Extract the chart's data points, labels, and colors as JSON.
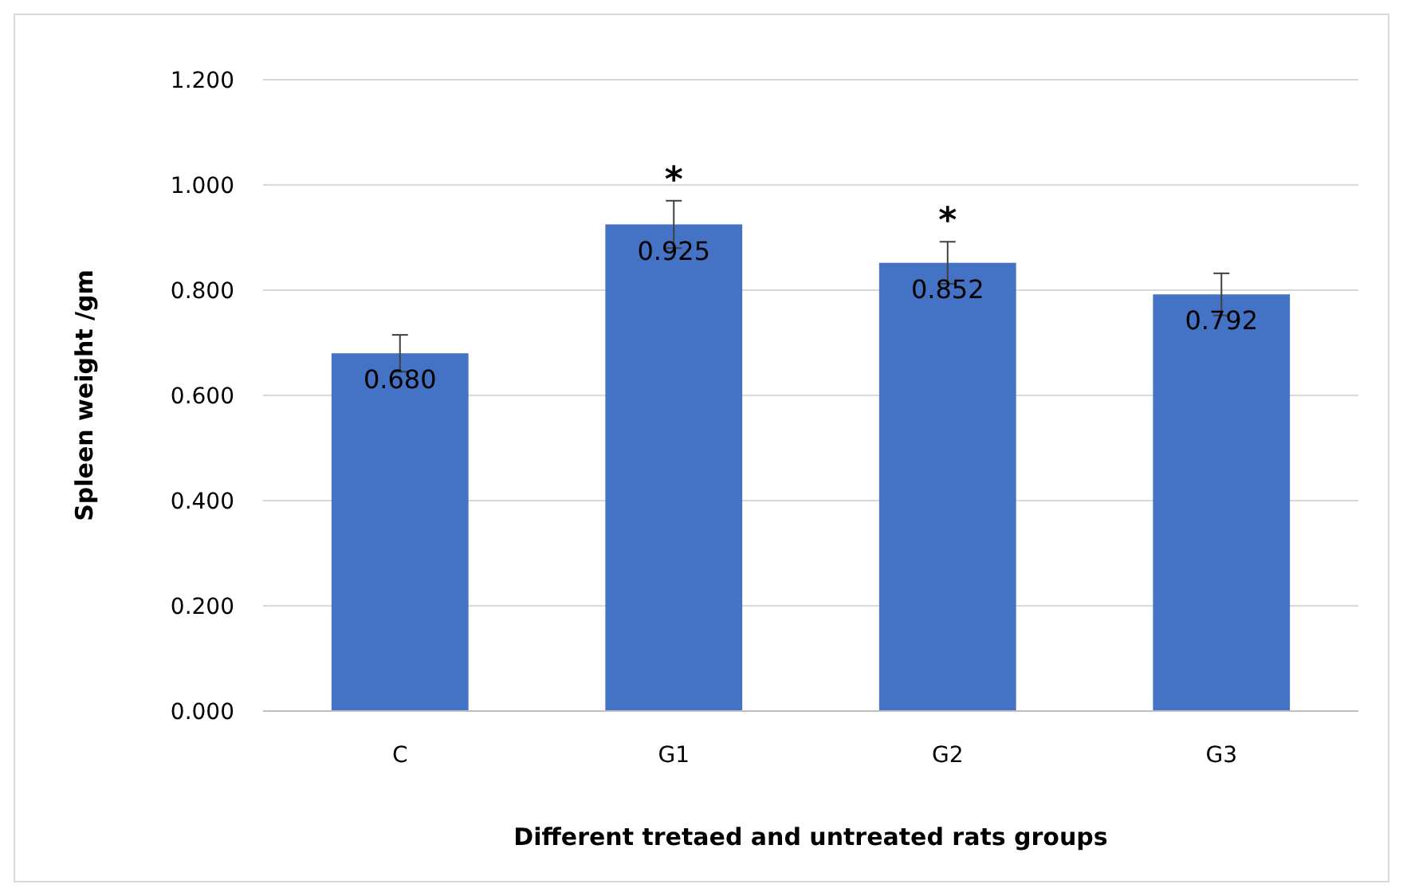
{
  "chart_data": {
    "type": "bar",
    "xlabel": "Different tretaed and untreated rats groups",
    "ylabel": "Spleen weight /gm",
    "categories": [
      "C",
      "G1",
      "G2",
      "G3"
    ],
    "values": [
      0.68,
      0.925,
      0.852,
      0.792
    ],
    "value_labels": [
      "0.680",
      "0.925",
      "0.852",
      "0.792"
    ],
    "errors": [
      0.035,
      0.045,
      0.04,
      0.04
    ],
    "color": "#4472c4",
    "ylim": [
      0,
      1.2
    ],
    "yticks": [
      {
        "value": 0,
        "label": "0.000"
      },
      {
        "value": 0.2,
        "label": "0.200"
      },
      {
        "value": 0.4,
        "label": "0.400"
      },
      {
        "value": 0.6,
        "label": "0.600"
      },
      {
        "value": 0.8,
        "label": "0.800"
      },
      {
        "value": 1,
        "label": "1.000"
      },
      {
        "value": 1.2,
        "label": "1.200"
      }
    ],
    "grid": "y",
    "annotations": [
      {
        "text": "*",
        "x": "G1",
        "y": 0.97
      },
      {
        "text": "*",
        "x": "G2",
        "y": 0.892
      }
    ]
  }
}
